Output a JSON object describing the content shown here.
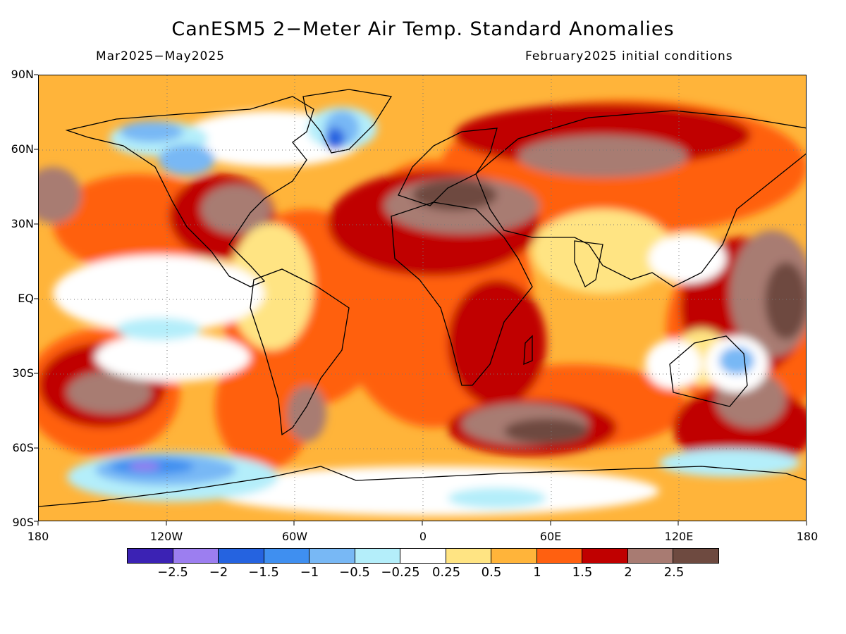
{
  "title": "CanESM5 2−Meter Air Temp. Standard Anomalies",
  "subtitle_left": "Mar2025−May2025",
  "subtitle_right": "February2025 initial conditions",
  "lat_labels": [
    "90N",
    "60N",
    "30N",
    "EQ",
    "30S",
    "60S",
    "90S"
  ],
  "lon_labels": [
    "180",
    "120W",
    "60W",
    "0",
    "60E",
    "120E",
    "180"
  ],
  "legend": {
    "labels": [
      "−2.5",
      "−2",
      "−1.5",
      "−1",
      "−0.5",
      "−0.25",
      "0.25",
      "0.5",
      "1",
      "1.5",
      "2",
      "2.5"
    ],
    "colors": [
      "#3b22b4",
      "#9c7ef0",
      "#2563e0",
      "#3f8ff0",
      "#78b8f5",
      "#b4eefa",
      "#ffffff",
      "#ffe483",
      "#ffb43a",
      "#ff6010",
      "#c00000",
      "#a87b72",
      "#6e4a40"
    ]
  }
}
